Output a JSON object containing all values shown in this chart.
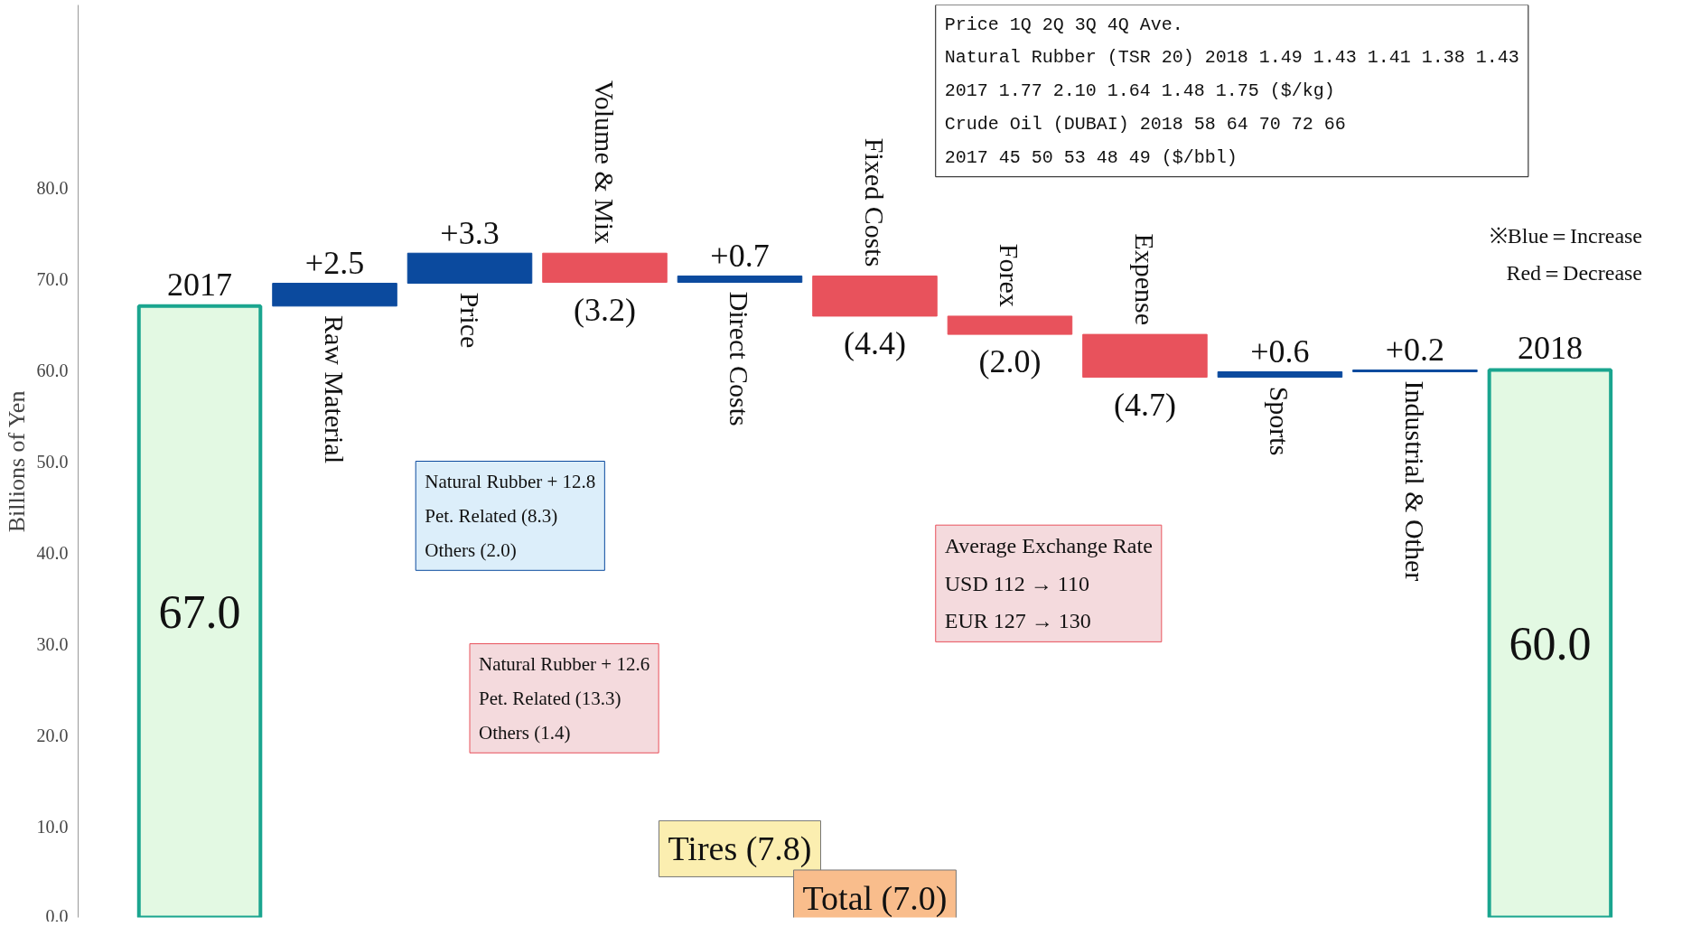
{
  "chart_data": {
    "type": "bar",
    "ylabel": "Billions of Yen",
    "categories": [
      "2017",
      "Raw Material",
      "Price",
      "Volume & Mix",
      "Direct Costs",
      "Fixed Costs",
      "Forex",
      "Expense",
      "Sports",
      "Industrial & Other",
      "2018"
    ],
    "values": [
      67.0,
      2.5,
      3.3,
      -3.2,
      0.7,
      -4.4,
      -2.0,
      -4.7,
      0.6,
      0.2,
      60.0
    ],
    "base": [
      0,
      67.0,
      69.5,
      72.8,
      69.6,
      70.3,
      65.9,
      63.9,
      59.2,
      59.8,
      0
    ],
    "colors": [
      "#e3f9e3",
      "#0b4a9e",
      "#0b4a9e",
      "#e8525c",
      "#0b4a9e",
      "#e8525c",
      "#e8525c",
      "#e8525c",
      "#0b4a9e",
      "#0b4a9e",
      "#e3f9e3"
    ],
    "value_labels": [
      "67.0",
      "+2.5",
      "+3.3",
      "(3.2)",
      "+0.7",
      "(4.4)",
      "(2.0)",
      "(4.7)",
      "+0.6",
      "+0.2",
      "60.0"
    ],
    "ylim": [
      0,
      100
    ],
    "yticks": [
      {
        "value": 0,
        "label": "0.0"
      },
      {
        "value": 10,
        "label": "10.0"
      },
      {
        "value": 20,
        "label": "20.0"
      },
      {
        "value": 30,
        "label": "30.0"
      },
      {
        "value": 40,
        "label": "40.0"
      },
      {
        "value": 50,
        "label": "50.0"
      },
      {
        "value": 60,
        "label": "60.0"
      },
      {
        "value": 70,
        "label": "70.0"
      },
      {
        "value": 80,
        "label": "80.0"
      }
    ],
    "annotations": [
      "Natural Rubber + 12.8",
      "Pet. Related (8.3)",
      "Others (2.0)",
      "Natural Rubber + 12.6",
      "Pet. Related (13.3)",
      "Others (1.4)",
      "Average Exchange Rate",
      "USD 112 → 110",
      "EUR 127 → 130",
      "Tires (7.8)",
      "Total (7.0)",
      "※Blue＝Increase",
      "Red＝Decrease",
      "Price 1Q 2Q 3Q 4Q Ave.",
      "Natural Rubber (TSR 20) 2018 1.49 1.43 1.41 1.38 1.43",
      "2017 1.77 2.10 1.64 1.48 1.75 ($/kg)",
      "Crude Oil (DUBAI) 2018 58 64 70 72 66",
      "2017 45 50 53 48 49 ($/bbl)"
    ]
  }
}
